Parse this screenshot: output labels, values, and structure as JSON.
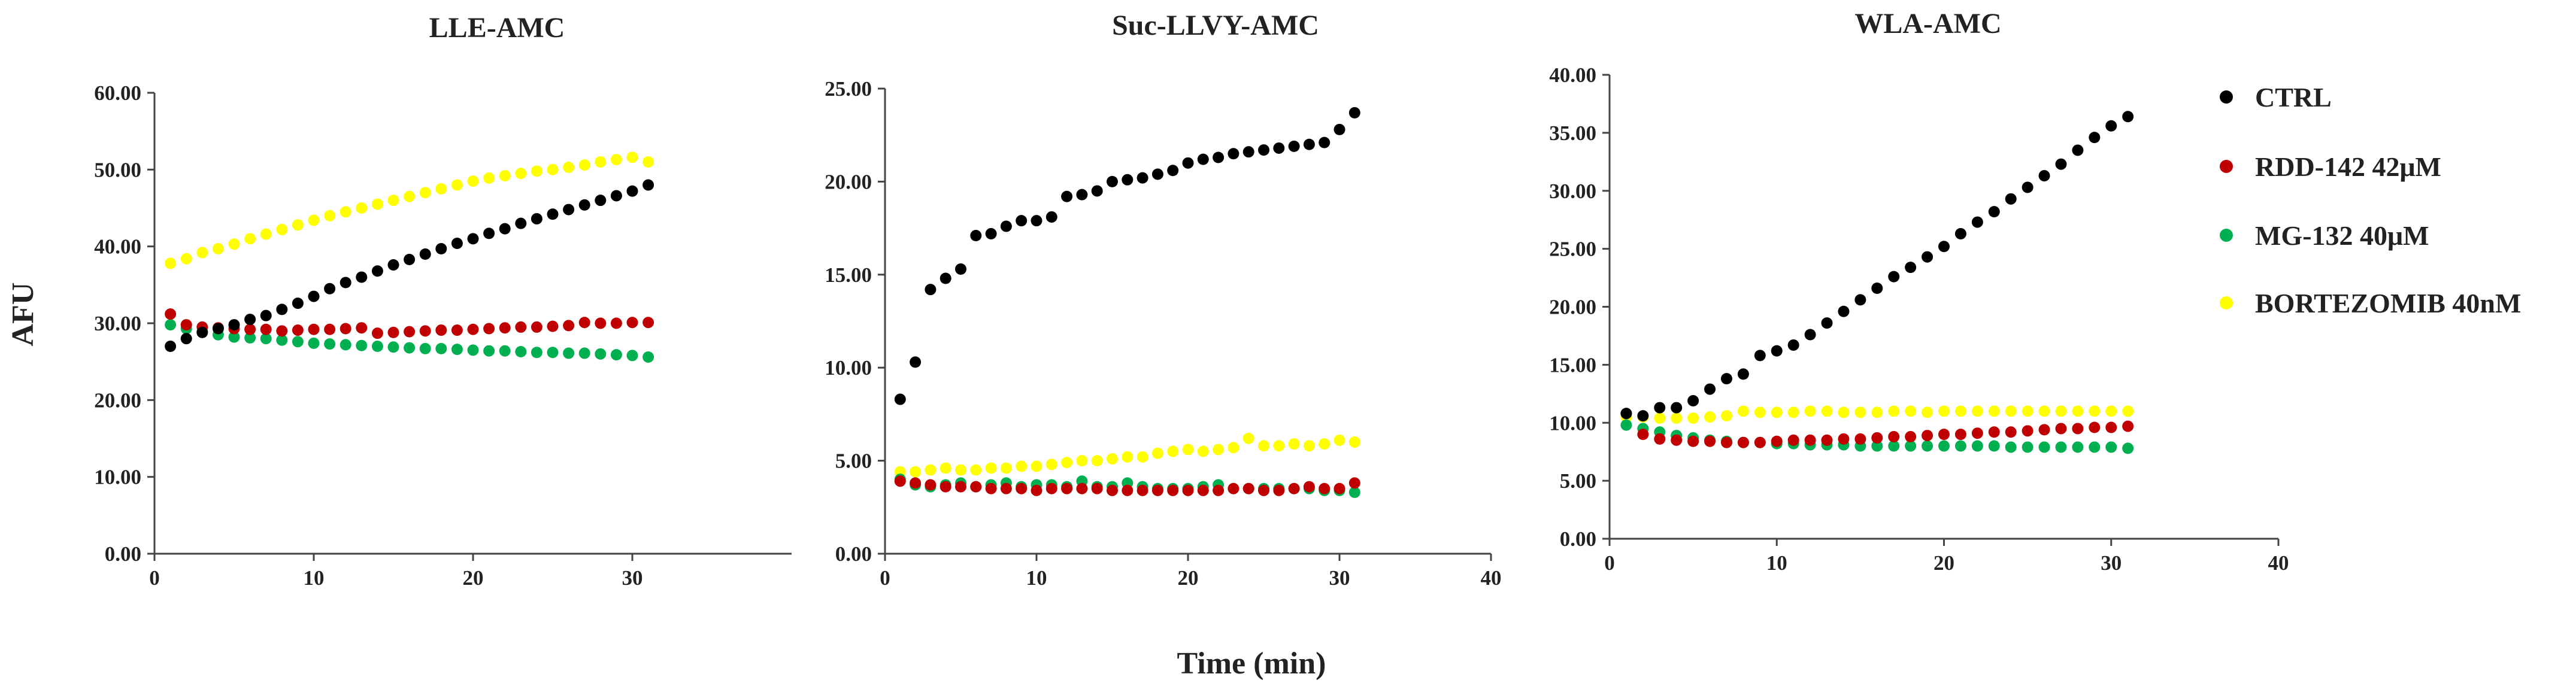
{
  "figure": {
    "ylabel": "AFU",
    "xlabel": "Time (min)",
    "colors": {
      "CTRL": "#000000",
      "RDD-142 42μM": "#c00000",
      "MG-132 40μM": "#00b050",
      "BORTEZOMIB 40nM": "#ffff00"
    }
  },
  "legend": [
    {
      "label": "CTRL",
      "color": "#000000"
    },
    {
      "label": "RDD-142 42μM",
      "color": "#c00000"
    },
    {
      "label": "MG-132 40μM",
      "color": "#00b050"
    },
    {
      "label": "BORTEZOMIB 40nM",
      "color": "#ffff00"
    }
  ],
  "chart_data": [
    {
      "type": "scatter",
      "title": "LLE-AMC",
      "xlabel": "Time (min)",
      "ylabel": "AFU",
      "xlim": [
        0,
        40
      ],
      "ylim": [
        0,
        60
      ],
      "xticks": [
        0,
        10,
        20,
        30
      ],
      "yticks": [
        "0.00",
        "10.00",
        "20.00",
        "30.00",
        "40.00",
        "50.00",
        "60.00"
      ],
      "x": [
        1,
        2,
        3,
        4,
        5,
        6,
        7,
        8,
        9,
        10,
        11,
        12,
        13,
        14,
        15,
        16,
        17,
        18,
        19,
        20,
        21,
        22,
        23,
        24,
        25,
        26,
        27,
        28,
        29,
        30,
        31
      ],
      "series": [
        {
          "name": "CTRL",
          "values": [
            27.0,
            28.0,
            28.8,
            29.3,
            29.8,
            30.5,
            31.0,
            31.8,
            32.6,
            33.5,
            34.5,
            35.3,
            36.0,
            36.8,
            37.6,
            38.3,
            39.0,
            39.7,
            40.4,
            41.0,
            41.7,
            42.3,
            43.0,
            43.6,
            44.2,
            44.8,
            45.4,
            46.0,
            46.6,
            47.2,
            48.0
          ]
        },
        {
          "name": "RDD-142 42μM",
          "values": [
            31.2,
            29.8,
            29.5,
            29.4,
            29.3,
            29.2,
            29.2,
            29.0,
            29.1,
            29.2,
            29.2,
            29.3,
            29.4,
            28.7,
            28.8,
            28.9,
            29.0,
            29.1,
            29.1,
            29.2,
            29.3,
            29.4,
            29.5,
            29.5,
            29.6,
            29.7,
            30.1,
            30.0,
            30.0,
            30.1,
            30.1
          ]
        },
        {
          "name": "MG-132 40μM",
          "values": [
            29.8,
            29.3,
            28.9,
            28.5,
            28.2,
            28.1,
            28.0,
            27.8,
            27.6,
            27.4,
            27.3,
            27.2,
            27.1,
            27.0,
            26.9,
            26.8,
            26.7,
            26.7,
            26.6,
            26.5,
            26.4,
            26.4,
            26.3,
            26.2,
            26.2,
            26.1,
            26.1,
            26.0,
            25.9,
            25.8,
            25.6
          ]
        },
        {
          "name": "BORTEZOMIB 40nM",
          "values": [
            37.8,
            38.4,
            39.2,
            39.7,
            40.3,
            41.0,
            41.6,
            42.2,
            42.8,
            43.4,
            44.0,
            44.5,
            45.0,
            45.5,
            46.0,
            46.5,
            47.0,
            47.5,
            48.0,
            48.5,
            48.9,
            49.2,
            49.5,
            49.8,
            50.0,
            50.3,
            50.6,
            51.0,
            51.3,
            51.6,
            51.0
          ]
        }
      ]
    },
    {
      "type": "scatter",
      "title": "Suc-LLVY-AMC",
      "xlabel": "Time (min)",
      "ylabel": "AFU",
      "xlim": [
        0,
        40
      ],
      "ylim": [
        0,
        25
      ],
      "xticks": [
        0,
        10,
        20,
        30,
        40
      ],
      "yticks": [
        "0.00",
        "5.00",
        "10.00",
        "15.00",
        "20.00",
        "25.00"
      ],
      "x": [
        1,
        2,
        3,
        4,
        5,
        6,
        7,
        8,
        9,
        10,
        11,
        12,
        13,
        14,
        15,
        16,
        17,
        18,
        19,
        20,
        21,
        22,
        23,
        24,
        25,
        26,
        27,
        28,
        29,
        30,
        31
      ],
      "series": [
        {
          "name": "CTRL",
          "values": [
            8.3,
            10.3,
            14.2,
            14.8,
            15.3,
            17.1,
            17.2,
            17.6,
            17.9,
            17.9,
            18.1,
            19.2,
            19.3,
            19.5,
            20.0,
            20.1,
            20.2,
            20.4,
            20.6,
            21.0,
            21.2,
            21.3,
            21.5,
            21.6,
            21.7,
            21.8,
            21.9,
            22.0,
            22.1,
            22.8,
            23.7
          ]
        },
        {
          "name": "RDD-142 42μM",
          "values": [
            3.9,
            3.8,
            3.7,
            3.6,
            3.6,
            3.6,
            3.5,
            3.5,
            3.5,
            3.4,
            3.5,
            3.5,
            3.5,
            3.5,
            3.4,
            3.4,
            3.4,
            3.4,
            3.4,
            3.4,
            3.4,
            3.4,
            3.5,
            3.5,
            3.4,
            3.4,
            3.5,
            3.6,
            3.5,
            3.5,
            3.8
          ]
        },
        {
          "name": "MG-132 40μM",
          "values": [
            4.0,
            3.7,
            3.6,
            3.7,
            3.8,
            3.6,
            3.7,
            3.8,
            3.6,
            3.7,
            3.7,
            3.6,
            3.9,
            3.6,
            3.6,
            3.8,
            3.6,
            3.5,
            3.5,
            3.5,
            3.6,
            3.7,
            3.5,
            3.5,
            3.5,
            3.5,
            3.5,
            3.5,
            3.4,
            3.4,
            3.3
          ]
        },
        {
          "name": "BORTEZOMIB 40nM",
          "values": [
            4.4,
            4.4,
            4.5,
            4.6,
            4.5,
            4.5,
            4.6,
            4.6,
            4.7,
            4.7,
            4.8,
            4.9,
            5.0,
            5.0,
            5.1,
            5.2,
            5.2,
            5.4,
            5.5,
            5.6,
            5.5,
            5.6,
            5.7,
            6.2,
            5.8,
            5.8,
            5.9,
            5.8,
            5.9,
            6.1,
            6.0
          ]
        }
      ]
    },
    {
      "type": "scatter",
      "title": "WLA-AMC",
      "xlabel": "Time (min)",
      "ylabel": "AFU",
      "xlim": [
        0,
        40
      ],
      "ylim": [
        0,
        40
      ],
      "xticks": [
        0,
        10,
        20,
        30,
        40
      ],
      "yticks": [
        "0.00",
        "5.00",
        "10.00",
        "15.00",
        "20.00",
        "25.00",
        "30.00",
        "35.00",
        "40.00"
      ],
      "x": [
        1,
        2,
        3,
        4,
        5,
        6,
        7,
        8,
        9,
        10,
        11,
        12,
        13,
        14,
        15,
        16,
        17,
        18,
        19,
        20,
        21,
        22,
        23,
        24,
        25,
        26,
        27,
        28,
        29,
        30,
        31
      ],
      "series": [
        {
          "name": "CTRL",
          "values": [
            10.8,
            10.6,
            11.3,
            11.3,
            11.9,
            12.9,
            13.8,
            14.2,
            15.8,
            16.2,
            16.7,
            17.6,
            18.6,
            19.6,
            20.6,
            21.6,
            22.6,
            23.4,
            24.3,
            25.2,
            26.3,
            27.3,
            28.2,
            29.3,
            30.3,
            31.3,
            32.3,
            33.5,
            34.6,
            35.6,
            36.4
          ]
        },
        {
          "name": "RDD-142 42μM",
          "values": [
            10.8,
            9.0,
            8.6,
            8.5,
            8.4,
            8.4,
            8.3,
            8.3,
            8.3,
            8.4,
            8.5,
            8.5,
            8.5,
            8.6,
            8.6,
            8.7,
            8.8,
            8.8,
            8.9,
            9.0,
            9.0,
            9.1,
            9.2,
            9.2,
            9.3,
            9.4,
            9.5,
            9.5,
            9.6,
            9.6,
            9.7
          ]
        },
        {
          "name": "MG-132 40μM",
          "values": [
            9.8,
            9.5,
            9.2,
            8.9,
            8.7,
            8.5,
            8.4,
            8.3,
            8.3,
            8.2,
            8.2,
            8.1,
            8.1,
            8.1,
            8.0,
            8.0,
            8.0,
            8.0,
            8.0,
            8.0,
            8.0,
            8.0,
            8.0,
            7.9,
            7.9,
            7.9,
            7.9,
            7.9,
            7.9,
            7.9,
            7.8
          ]
        },
        {
          "name": "BORTEZOMIB 40nM",
          "values": [
            10.5,
            10.5,
            10.4,
            10.4,
            10.4,
            10.5,
            10.6,
            11.0,
            10.9,
            10.9,
            10.9,
            11.0,
            11.0,
            10.9,
            10.9,
            10.9,
            11.0,
            11.0,
            10.9,
            11.0,
            11.0,
            11.0,
            11.0,
            11.0,
            11.0,
            11.0,
            11.0,
            11.0,
            11.0,
            11.0,
            11.0
          ]
        }
      ]
    }
  ]
}
